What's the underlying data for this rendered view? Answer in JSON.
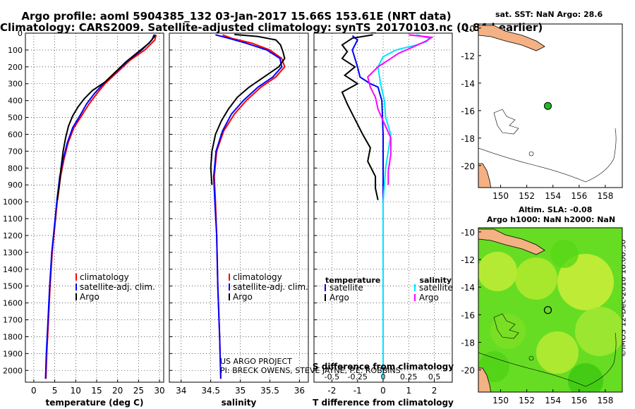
{
  "title_line1": "Argo profile: aoml 5904385_132 03-Jan-2017 15.66S 153.61E (NRT data)",
  "title_line2": "Climatology: CARS2009. Satellite-adjusted climatology: synTS_20170103.nc (0.84d earlier)",
  "credit_line1": "US ARGO PROJECT",
  "credit_line2": "PI: BRECK OWENS, STEVE JAYNE, P.E. ROBBINS",
  "right_col": {
    "sst_label": "sat. SST: NaN Argo: 28.6",
    "sla_label": "Altim. SLA: -0.08",
    "h_label": "Argo h1000: NaN h2000: NaN",
    "vertical_stamp": "©IMOS 12-Dec-2018 18:00:50"
  },
  "colors": {
    "climatology": "#ff0000",
    "satellite": "#0000ff",
    "argo": "#000000",
    "sat_sal": "#00e5ff",
    "argo_sal": "#ff00ff",
    "land": "#f4b183",
    "sla_field": "#66dd22"
  },
  "chart_data": [
    {
      "type": "line",
      "name": "temperature",
      "xlabel": "temperature (deg C)",
      "ylabel": "",
      "xlim": [
        -2,
        31
      ],
      "ylim": [
        2070,
        0
      ],
      "xticks": [
        0,
        5,
        10,
        15,
        20,
        25,
        30
      ],
      "yticks": [
        0,
        100,
        200,
        300,
        400,
        500,
        600,
        700,
        800,
        900,
        1000,
        1100,
        1200,
        1300,
        1400,
        1500,
        1600,
        1700,
        1800,
        1900,
        2000
      ],
      "legend": [
        "climatology",
        "satellite-adj. clim.",
        "Argo"
      ],
      "series": [
        {
          "name": "climatology",
          "color": "#ff0000",
          "points": [
            [
              29.2,
              10
            ],
            [
              28.9,
              40
            ],
            [
              26.5,
              100
            ],
            [
              23,
              160
            ],
            [
              20,
              230
            ],
            [
              17,
              300
            ],
            [
              15,
              360
            ],
            [
              13.2,
              420
            ],
            [
              11.4,
              490
            ],
            [
              9.6,
              560
            ],
            [
              8.2,
              650
            ],
            [
              7.2,
              750
            ],
            [
              6.4,
              850
            ],
            [
              5.6,
              1000
            ],
            [
              5,
              1150
            ],
            [
              4.4,
              1300
            ],
            [
              3.9,
              1500
            ],
            [
              3.4,
              1750
            ],
            [
              3.1,
              1900
            ],
            [
              2.9,
              2050
            ]
          ]
        },
        {
          "name": "satellite-adj. clim.",
          "color": "#0000ff",
          "points": [
            [
              28.7,
              10
            ],
            [
              28.2,
              40
            ],
            [
              25.8,
              100
            ],
            [
              22.6,
              160
            ],
            [
              19.6,
              230
            ],
            [
              16.6,
              300
            ],
            [
              14.4,
              360
            ],
            [
              12.6,
              420
            ],
            [
              11,
              490
            ],
            [
              9.3,
              560
            ],
            [
              8,
              650
            ],
            [
              7,
              750
            ],
            [
              6.2,
              850
            ],
            [
              5.5,
              1000
            ],
            [
              4.9,
              1150
            ],
            [
              4.3,
              1300
            ],
            [
              3.8,
              1500
            ],
            [
              3.3,
              1750
            ],
            [
              3,
              1900
            ],
            [
              2.8,
              2050
            ]
          ]
        },
        {
          "name": "Argo",
          "color": "#000000",
          "points": [
            [
              28.9,
              8
            ],
            [
              28.8,
              20
            ],
            [
              27.5,
              60
            ],
            [
              25,
              110
            ],
            [
              22,
              170
            ],
            [
              19.5,
              230
            ],
            [
              17,
              290
            ],
            [
              14,
              340
            ],
            [
              12,
              390
            ],
            [
              10.5,
              440
            ],
            [
              9.3,
              490
            ],
            [
              8.3,
              550
            ],
            [
              7.6,
              620
            ],
            [
              7,
              700
            ],
            [
              6.5,
              800
            ],
            [
              6.1,
              900
            ],
            [
              5.6,
              990
            ]
          ]
        }
      ]
    },
    {
      "type": "line",
      "name": "salinity",
      "xlabel": "salinity",
      "xlim": [
        33.8,
        36.15
      ],
      "ylim": [
        2070,
        0
      ],
      "xticks": [
        34,
        34.5,
        35,
        35.5,
        36
      ],
      "xtick_labels": [
        "34",
        "34.5",
        "35",
        "35.5",
        "36"
      ],
      "legend": [
        "climatology",
        "satellite-adj. clim.",
        "Argo"
      ],
      "series": [
        {
          "name": "climatology",
          "color": "#ff0000",
          "points": [
            [
              34.7,
              10
            ],
            [
              34.85,
              30
            ],
            [
              35.2,
              60
            ],
            [
              35.5,
              100
            ],
            [
              35.7,
              150
            ],
            [
              35.75,
              200
            ],
            [
              35.6,
              260
            ],
            [
              35.35,
              320
            ],
            [
              35.1,
              400
            ],
            [
              34.9,
              480
            ],
            [
              34.72,
              580
            ],
            [
              34.6,
              700
            ],
            [
              34.56,
              850
            ],
            [
              34.58,
              1000
            ],
            [
              34.6,
              1200
            ],
            [
              34.62,
              1500
            ],
            [
              34.65,
              1800
            ],
            [
              34.67,
              2050
            ]
          ]
        },
        {
          "name": "satellite-adj. clim.",
          "color": "#0000ff",
          "points": [
            [
              34.58,
              10
            ],
            [
              34.8,
              30
            ],
            [
              35.1,
              60
            ],
            [
              35.45,
              100
            ],
            [
              35.67,
              150
            ],
            [
              35.7,
              200
            ],
            [
              35.55,
              260
            ],
            [
              35.3,
              320
            ],
            [
              35.05,
              400
            ],
            [
              34.85,
              480
            ],
            [
              34.7,
              580
            ],
            [
              34.59,
              700
            ],
            [
              34.55,
              850
            ],
            [
              34.57,
              1000
            ],
            [
              34.6,
              1200
            ],
            [
              34.62,
              1500
            ],
            [
              34.65,
              1800
            ],
            [
              34.67,
              2050
            ]
          ]
        },
        {
          "name": "Argo",
          "color": "#000000",
          "points": [
            [
              34.9,
              8
            ],
            [
              35.3,
              20
            ],
            [
              35.6,
              40
            ],
            [
              35.68,
              70
            ],
            [
              35.72,
              110
            ],
            [
              35.75,
              150
            ],
            [
              35.65,
              200
            ],
            [
              35.4,
              260
            ],
            [
              35.15,
              320
            ],
            [
              34.95,
              380
            ],
            [
              34.8,
              450
            ],
            [
              34.68,
              520
            ],
            [
              34.58,
              600
            ],
            [
              34.52,
              700
            ],
            [
              34.5,
              800
            ],
            [
              34.52,
              900
            ]
          ]
        }
      ]
    },
    {
      "type": "line",
      "name": "difference",
      "xlabel": "T difference from climatology",
      "xlabel_top": "S difference from climatology",
      "xlim": [
        -2.7,
        2.7
      ],
      "ylim": [
        2070,
        0
      ],
      "xticks": [
        -2,
        -1,
        0,
        1,
        2
      ],
      "top_ticks": [
        -0.5,
        -0.25,
        0,
        0.25,
        0.5
      ],
      "top_tick_labels": [
        "-0.5",
        "-0.25",
        "0",
        "0.25",
        "0.5"
      ],
      "legend_left_title": "temperature",
      "legend_right_title": "salinity",
      "legend": [
        "satellite",
        "Argo",
        "satellite",
        "Argo"
      ],
      "series": [
        {
          "name": "T satellite",
          "color": "#0000ff",
          "points": [
            [
              -1.2,
              15
            ],
            [
              -1,
              40
            ],
            [
              -1.1,
              70
            ],
            [
              -1.2,
              100
            ],
            [
              -1.1,
              150
            ],
            [
              -1,
              200
            ],
            [
              -0.9,
              260
            ],
            [
              -0.5,
              300
            ],
            [
              -0.2,
              320
            ],
            [
              -0.05,
              400
            ],
            [
              0,
              600
            ],
            [
              0,
              2050
            ]
          ]
        },
        {
          "name": "T Argo",
          "color": "#000000",
          "points": [
            [
              -0.4,
              10
            ],
            [
              -1.2,
              30
            ],
            [
              -1.6,
              70
            ],
            [
              -1.4,
              110
            ],
            [
              -1.6,
              150
            ],
            [
              -1.1,
              200
            ],
            [
              -1.5,
              250
            ],
            [
              -1,
              300
            ],
            [
              -1.6,
              350
            ],
            [
              -1.4,
              420
            ],
            [
              -1.2,
              480
            ],
            [
              -1,
              540
            ],
            [
              -0.8,
              600
            ],
            [
              -0.5,
              680
            ],
            [
              -0.6,
              760
            ],
            [
              -0.3,
              850
            ],
            [
              -0.3,
              920
            ],
            [
              -0.2,
              990
            ]
          ]
        },
        {
          "name": "S satellite",
          "color": "#00e5ff",
          "points": [
            [
              1.3,
              10
            ],
            [
              1.8,
              30
            ],
            [
              1.7,
              50
            ],
            [
              1.3,
              70
            ],
            [
              0.5,
              100
            ],
            [
              0,
              140
            ],
            [
              -0.2,
              200
            ],
            [
              -0.1,
              300
            ],
            [
              0.05,
              400
            ],
            [
              0.1,
              500
            ],
            [
              0.3,
              600
            ],
            [
              0.2,
              700
            ],
            [
              0.1,
              800
            ],
            [
              0.05,
              900
            ],
            [
              0,
              1000
            ],
            [
              0,
              2050
            ]
          ]
        },
        {
          "name": "S Argo",
          "color": "#ff00ff",
          "points": [
            [
              1,
              10
            ],
            [
              1.9,
              25
            ],
            [
              1.7,
              45
            ],
            [
              1.2,
              80
            ],
            [
              0.6,
              120
            ],
            [
              0.2,
              160
            ],
            [
              -0.2,
              200
            ],
            [
              -0.6,
              260
            ],
            [
              -0.5,
              320
            ],
            [
              -0.3,
              380
            ],
            [
              -0.2,
              450
            ],
            [
              0,
              520
            ],
            [
              0.3,
              620
            ],
            [
              0.3,
              720
            ],
            [
              0.2,
              820
            ],
            [
              0.2,
              900
            ]
          ]
        }
      ]
    },
    {
      "type": "map",
      "name": "sst_map",
      "xticks": [
        150,
        152,
        154,
        156,
        158
      ],
      "yticks": [
        -10,
        -12,
        -14,
        -16,
        -18,
        -20
      ],
      "xlim": [
        148.3,
        159.3
      ],
      "ylim": [
        -21.6,
        -9.7
      ],
      "profile_location": [
        153.61,
        -15.66
      ]
    },
    {
      "type": "map",
      "name": "sla_map",
      "xticks": [
        150,
        152,
        154,
        156,
        158
      ],
      "yticks": [
        -10,
        -12,
        -14,
        -16,
        -18,
        -20
      ],
      "xlim": [
        148.3,
        159.3
      ],
      "ylim": [
        -21.6,
        -9.7
      ],
      "profile_location": [
        153.61,
        -15.66
      ]
    }
  ]
}
